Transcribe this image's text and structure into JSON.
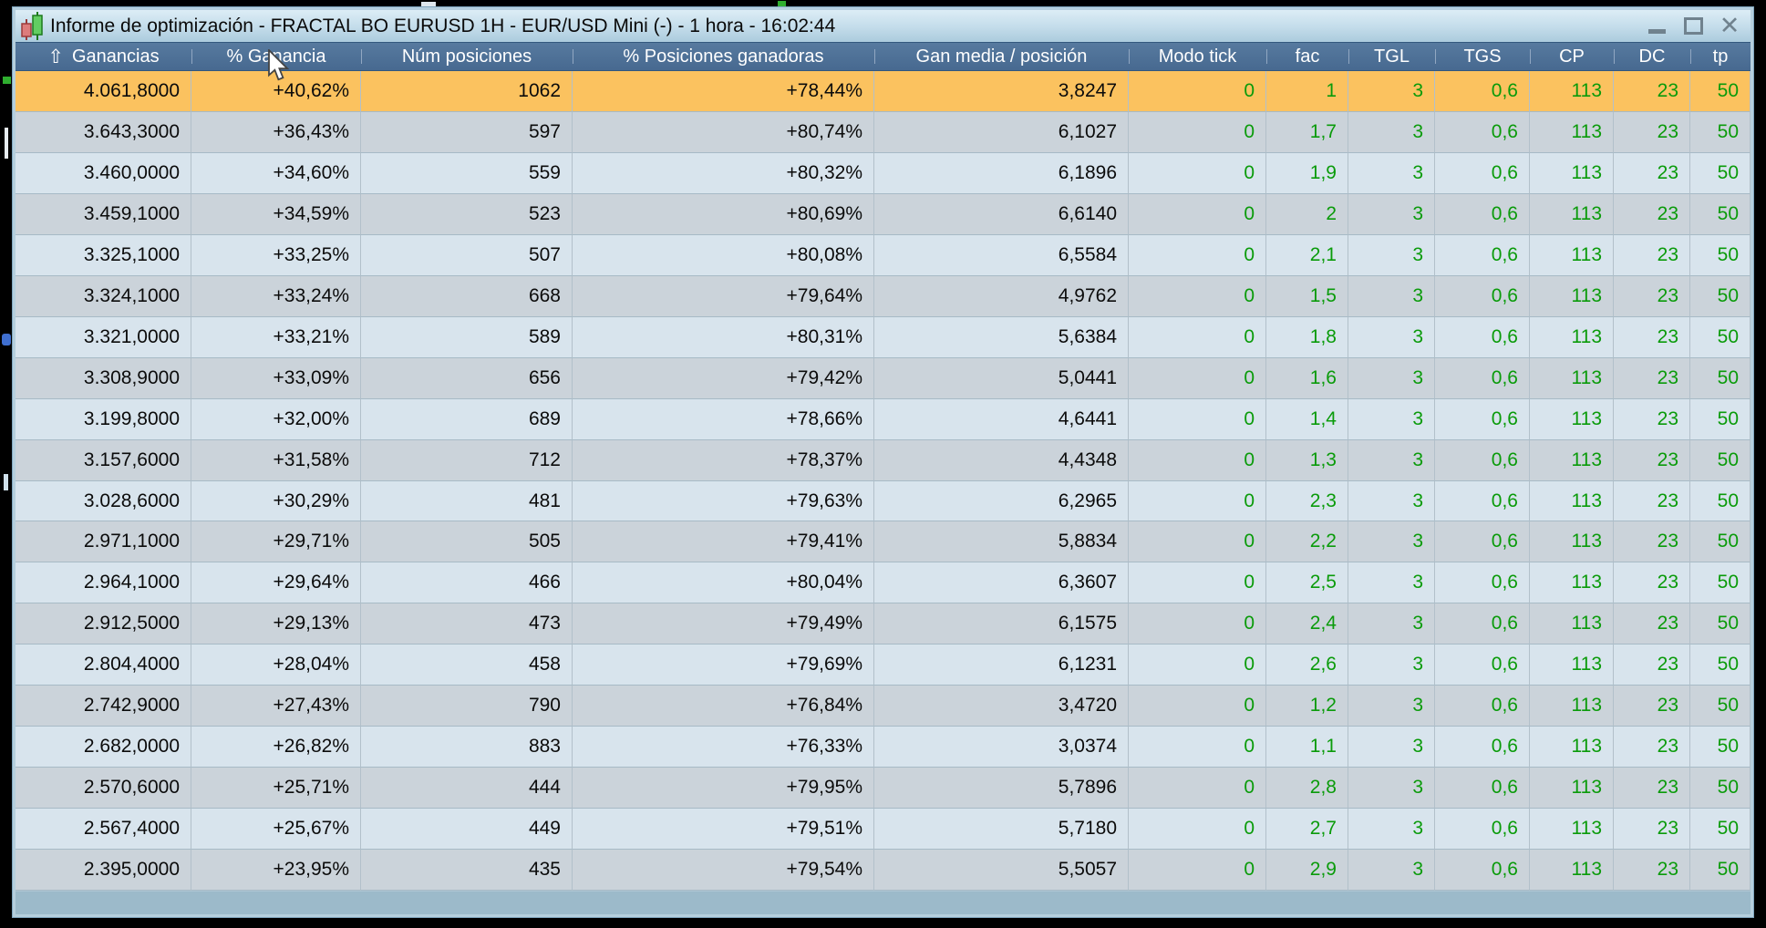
{
  "window": {
    "title": "Informe de optimización - FRACTAL BO EURUSD 1H - EUR/USD Mini (-) - 1 hora - 16:02:44",
    "icon": "candlestick-chart-icon",
    "controls": {
      "minimize": "minimize",
      "maximize": "maximize",
      "close_glyph": "✕"
    }
  },
  "table": {
    "sort_icon": "⇧",
    "sorted_column": "Ganancias",
    "sort_direction": "ascending-arrow-shown",
    "selected_row_index": 0,
    "columns": [
      {
        "key": "ganancias",
        "label": "Ganancias"
      },
      {
        "key": "pct_ganancia",
        "label": "% Ganancia"
      },
      {
        "key": "num_posiciones",
        "label": "Núm posiciones"
      },
      {
        "key": "pct_posiciones_ganadoras",
        "label": "% Posiciones ganadoras"
      },
      {
        "key": "gan_media_posicion",
        "label": "Gan media / posición"
      },
      {
        "key": "modo_tick",
        "label": "Modo tick"
      },
      {
        "key": "fac",
        "label": "fac"
      },
      {
        "key": "tgl",
        "label": "TGL"
      },
      {
        "key": "tgs",
        "label": "TGS"
      },
      {
        "key": "cp",
        "label": "CP"
      },
      {
        "key": "dc",
        "label": "DC"
      },
      {
        "key": "tp",
        "label": "tp"
      }
    ],
    "green_columns_from_index": 5,
    "rows": [
      [
        "4.061,8000",
        "+40,62%",
        "1062",
        "+78,44%",
        "3,8247",
        "0",
        "1",
        "3",
        "0,6",
        "113",
        "23",
        "50"
      ],
      [
        "3.643,3000",
        "+36,43%",
        "597",
        "+80,74%",
        "6,1027",
        "0",
        "1,7",
        "3",
        "0,6",
        "113",
        "23",
        "50"
      ],
      [
        "3.460,0000",
        "+34,60%",
        "559",
        "+80,32%",
        "6,1896",
        "0",
        "1,9",
        "3",
        "0,6",
        "113",
        "23",
        "50"
      ],
      [
        "3.459,1000",
        "+34,59%",
        "523",
        "+80,69%",
        "6,6140",
        "0",
        "2",
        "3",
        "0,6",
        "113",
        "23",
        "50"
      ],
      [
        "3.325,1000",
        "+33,25%",
        "507",
        "+80,08%",
        "6,5584",
        "0",
        "2,1",
        "3",
        "0,6",
        "113",
        "23",
        "50"
      ],
      [
        "3.324,1000",
        "+33,24%",
        "668",
        "+79,64%",
        "4,9762",
        "0",
        "1,5",
        "3",
        "0,6",
        "113",
        "23",
        "50"
      ],
      [
        "3.321,0000",
        "+33,21%",
        "589",
        "+80,31%",
        "5,6384",
        "0",
        "1,8",
        "3",
        "0,6",
        "113",
        "23",
        "50"
      ],
      [
        "3.308,9000",
        "+33,09%",
        "656",
        "+79,42%",
        "5,0441",
        "0",
        "1,6",
        "3",
        "0,6",
        "113",
        "23",
        "50"
      ],
      [
        "3.199,8000",
        "+32,00%",
        "689",
        "+78,66%",
        "4,6441",
        "0",
        "1,4",
        "3",
        "0,6",
        "113",
        "23",
        "50"
      ],
      [
        "3.157,6000",
        "+31,58%",
        "712",
        "+78,37%",
        "4,4348",
        "0",
        "1,3",
        "3",
        "0,6",
        "113",
        "23",
        "50"
      ],
      [
        "3.028,6000",
        "+30,29%",
        "481",
        "+79,63%",
        "6,2965",
        "0",
        "2,3",
        "3",
        "0,6",
        "113",
        "23",
        "50"
      ],
      [
        "2.971,1000",
        "+29,71%",
        "505",
        "+79,41%",
        "5,8834",
        "0",
        "2,2",
        "3",
        "0,6",
        "113",
        "23",
        "50"
      ],
      [
        "2.964,1000",
        "+29,64%",
        "466",
        "+80,04%",
        "6,3607",
        "0",
        "2,5",
        "3",
        "0,6",
        "113",
        "23",
        "50"
      ],
      [
        "2.912,5000",
        "+29,13%",
        "473",
        "+79,49%",
        "6,1575",
        "0",
        "2,4",
        "3",
        "0,6",
        "113",
        "23",
        "50"
      ],
      [
        "2.804,4000",
        "+28,04%",
        "458",
        "+79,69%",
        "6,1231",
        "0",
        "2,6",
        "3",
        "0,6",
        "113",
        "23",
        "50"
      ],
      [
        "2.742,9000",
        "+27,43%",
        "790",
        "+76,84%",
        "3,4720",
        "0",
        "1,2",
        "3",
        "0,6",
        "113",
        "23",
        "50"
      ],
      [
        "2.682,0000",
        "+26,82%",
        "883",
        "+76,33%",
        "3,0374",
        "0",
        "1,1",
        "3",
        "0,6",
        "113",
        "23",
        "50"
      ],
      [
        "2.570,6000",
        "+25,71%",
        "444",
        "+79,95%",
        "5,7896",
        "0",
        "2,8",
        "3",
        "0,6",
        "113",
        "23",
        "50"
      ],
      [
        "2.567,4000",
        "+25,67%",
        "449",
        "+79,51%",
        "5,7180",
        "0",
        "2,7",
        "3",
        "0,6",
        "113",
        "23",
        "50"
      ],
      [
        "2.395,0000",
        "+23,95%",
        "435",
        "+79,54%",
        "5,5057",
        "0",
        "2,9",
        "3",
        "0,6",
        "113",
        "23",
        "50"
      ]
    ]
  },
  "colors": {
    "selected_row": "#fbc25f",
    "row_light": "#d8e4ed",
    "row_dark": "#cbd3da",
    "header_blue": "#4d6f97",
    "value_green": "#0a9b0a",
    "titlebar_blue": "#c3dcea",
    "footer_blue": "#9cbaca"
  }
}
